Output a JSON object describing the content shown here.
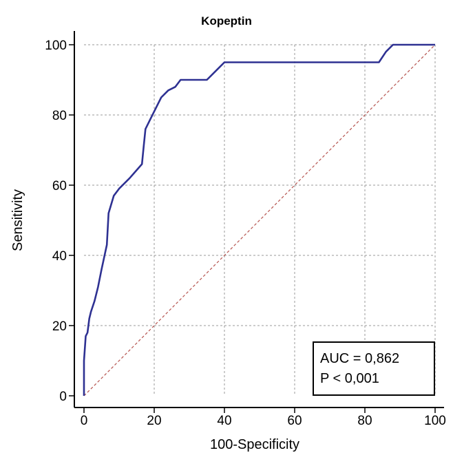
{
  "chart_data": {
    "type": "line",
    "title": "Kopeptin",
    "xlabel": "100-Specificity",
    "ylabel": "Sensitivity",
    "xlim": [
      0,
      100
    ],
    "ylim": [
      0,
      100
    ],
    "x_ticks": [
      "0",
      "20",
      "40",
      "60",
      "80",
      "100"
    ],
    "y_ticks": [
      "0",
      "20",
      "40",
      "60",
      "80",
      "100"
    ],
    "grid": true,
    "series": [
      {
        "color": "#2e3192",
        "x": [
          0,
          0,
          0.5,
          1,
          1.5,
          2,
          3,
          4,
          5,
          6.5,
          7,
          8.5,
          10,
          13,
          16.5,
          17,
          17.5,
          19,
          21,
          22,
          24,
          26,
          27.5,
          31,
          35,
          38,
          40,
          45,
          50,
          60,
          70,
          80,
          84,
          86,
          88,
          90,
          100
        ],
        "y": [
          0,
          10,
          17,
          18,
          22,
          24,
          27,
          31,
          36,
          43,
          52,
          57,
          59,
          62,
          66,
          71,
          76,
          79,
          83,
          85,
          87,
          88,
          90,
          90,
          90,
          93,
          95,
          95,
          95,
          95,
          95,
          95,
          95,
          98,
          100,
          100,
          100
        ]
      },
      {
        "color": "#b5524d",
        "style": "dashed",
        "x": [
          0,
          100
        ],
        "y": [
          0,
          100
        ]
      }
    ],
    "annotation": {
      "line1": "AUC = 0,862",
      "line2": "P < 0,001",
      "position": "bottom-right"
    }
  }
}
